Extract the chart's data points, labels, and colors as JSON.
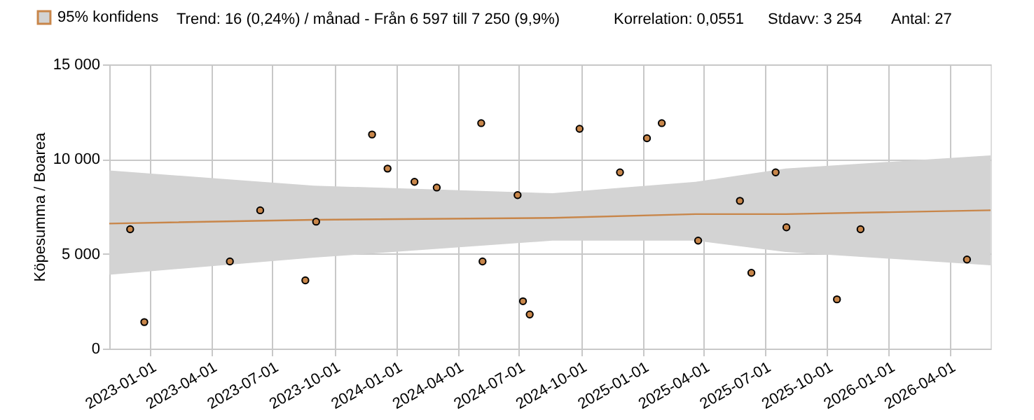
{
  "chart_data": {
    "type": "scatter",
    "ylabel": "Köpesumma / Boarea",
    "annotations": [
      "Trend: 16 (0,24%) / månad  -  Från 6 597 till 7 250 (9,9%)",
      "Korrelation: 0,0551",
      "Stdavv: 3 254",
      "Antal: 27"
    ],
    "xlim": [
      "2022-11-01",
      "2026-06-01"
    ],
    "xticks": [
      "2023-01-01",
      "2023-04-01",
      "2023-07-01",
      "2023-10-01",
      "2024-01-01",
      "2024-04-01",
      "2024-07-01",
      "2024-10-01",
      "2025-01-01",
      "2025-04-01",
      "2025-07-01",
      "2025-10-01",
      "2026-01-01",
      "2026-04-01"
    ],
    "ylim": [
      0,
      15000
    ],
    "yticks": [
      0,
      5000,
      10000,
      15000
    ],
    "grid": true,
    "legend": "top left",
    "series": [
      {
        "type": "line",
        "name": "95% konfidens",
        "color": "#c8864a",
        "x": [
          "2022-11-01",
          "2023-09-01",
          "2024-08-20",
          "2025-03-20",
          "2025-08-01",
          "2026-06-01"
        ],
        "values": [
          6600,
          6800,
          6900,
          7100,
          7100,
          7300
        ],
        "upper": [
          9400,
          8600,
          8200,
          8800,
          9500,
          10200
        ],
        "lower": [
          3900,
          4800,
          5700,
          5700,
          5100,
          4400
        ]
      },
      {
        "color": "#c8864a",
        "marker": "circle",
        "x": [
          "2022-12-02",
          "2022-12-23",
          "2023-04-29",
          "2023-06-13",
          "2023-08-19",
          "2023-09-04",
          "2023-11-26",
          "2023-12-19",
          "2024-01-28",
          "2024-03-01",
          "2024-05-06",
          "2024-05-08",
          "2024-06-29",
          "2024-07-07",
          "2024-07-17",
          "2024-09-29",
          "2024-11-28",
          "2025-01-07",
          "2025-01-29",
          "2025-03-24",
          "2025-05-25",
          "2025-06-11",
          "2025-07-17",
          "2025-08-02",
          "2025-10-16",
          "2025-11-20",
          "2026-04-27"
        ],
        "values": [
          6300,
          1400,
          4600,
          7300,
          3600,
          6700,
          11300,
          9500,
          8800,
          8500,
          11900,
          4600,
          8100,
          2500,
          1800,
          11600,
          9300,
          11100,
          11900,
          5700,
          7800,
          4000,
          9300,
          6400,
          2600,
          6300,
          4700
        ]
      }
    ]
  }
}
